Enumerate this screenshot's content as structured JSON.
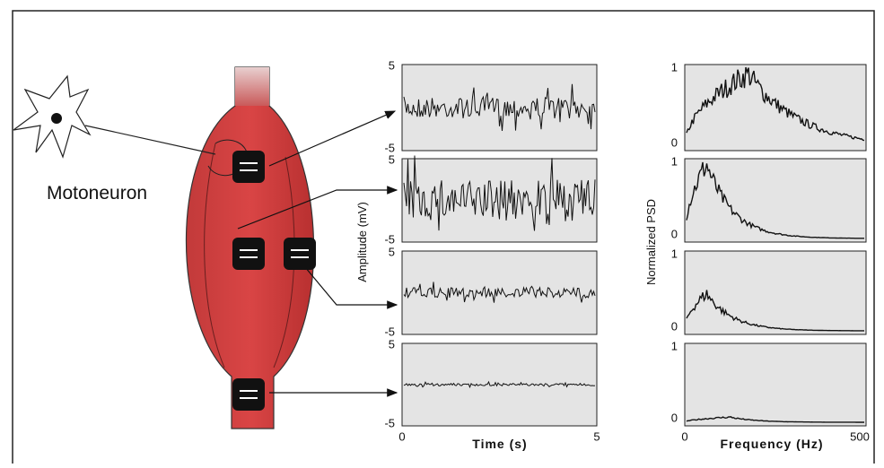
{
  "labels": {
    "motoneuron": "Motoneuron"
  },
  "time_panels": {
    "y_axis_label": "Amplitude (mV)",
    "x_axis_label": "Time (s)",
    "y_ticks": [
      5,
      -5
    ],
    "x_ticks": [
      0,
      5
    ]
  },
  "psd_panels": {
    "y_axis_label": "Normalized PSD",
    "x_axis_label": "Frequency (Hz)",
    "y_ticks": [
      1,
      0
    ],
    "x_ticks": [
      0,
      500
    ]
  }
}
